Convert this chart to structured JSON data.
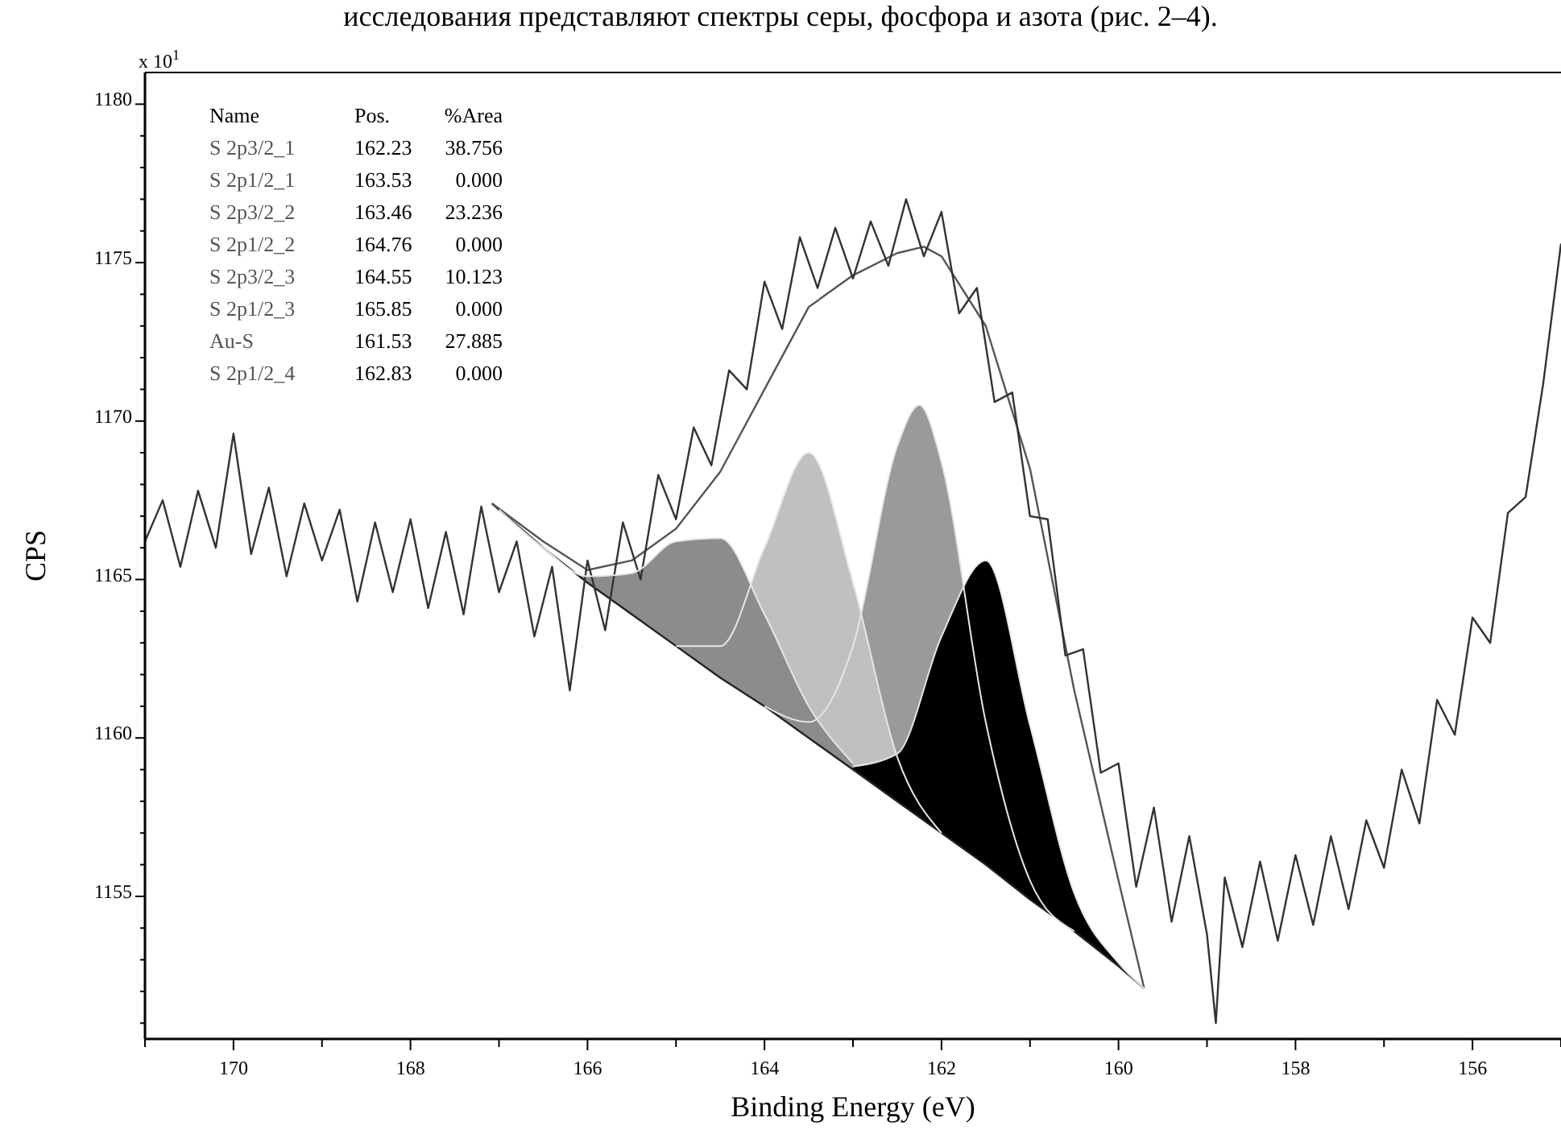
{
  "chart_data": {
    "type": "area",
    "xlabel": "Binding Energy (eV)",
    "ylabel": "CPS",
    "xlim": [
      171,
      155
    ],
    "xticks": [
      {
        "value": 171,
        "label": null
      },
      170,
      {
        "value": 169,
        "label": null
      },
      168,
      {
        "value": 167,
        "label": null
      },
      166,
      {
        "value": 165,
        "label": null
      },
      164,
      {
        "value": 163,
        "label": null
      },
      162,
      {
        "value": 161,
        "label": null
      },
      160,
      {
        "value": 159,
        "label": null
      },
      158,
      {
        "value": 157,
        "label": null
      },
      156,
      {
        "value": 155,
        "label": null
      }
    ],
    "ylim": [
      1150.5,
      1181
    ],
    "yticks": [
      {
        "value": 1151,
        "label": null
      },
      {
        "value": 1152,
        "label": null
      },
      {
        "value": 1153,
        "label": null
      },
      {
        "value": 1154,
        "label": null
      },
      1155,
      {
        "value": 1156,
        "label": null
      },
      {
        "value": 1157,
        "label": null
      },
      {
        "value": 1158,
        "label": null
      },
      {
        "value": 1159,
        "label": null
      },
      1160,
      {
        "value": 1161,
        "label": null
      },
      {
        "value": 1162,
        "label": null
      },
      {
        "value": 1163,
        "label": null
      },
      {
        "value": 1164,
        "label": null
      },
      1165,
      {
        "value": 1166,
        "label": null
      },
      {
        "value": 1167,
        "label": null
      },
      {
        "value": 1168,
        "label": null
      },
      {
        "value": 1169,
        "label": null
      },
      1170,
      {
        "value": 1171,
        "label": null
      },
      {
        "value": 1172,
        "label": null
      },
      {
        "value": 1173,
        "label": null
      },
      {
        "value": 1174,
        "label": null
      },
      1175,
      {
        "value": 1176,
        "label": null
      },
      {
        "value": 1177,
        "label": null
      },
      {
        "value": 1178,
        "label": null
      },
      {
        "value": 1179,
        "label": null
      },
      1180
    ],
    "grid": false,
    "series": [
      {
        "color": "#9a9a9a",
        "x": [
          164,
          163.5,
          163,
          162.5,
          162.25,
          162,
          161.5,
          161,
          160.5
        ],
        "values": [
          1161.0,
          1160.5,
          1162.9,
          1169.2,
          1170.5,
          1168.7,
          1160.5,
          1155.5,
          1153.9
        ]
      },
      {
        "color": "#c0c0c0",
        "x": [
          165,
          164.5,
          164,
          163.5,
          163,
          162.5,
          162
        ],
        "values": [
          1162.9,
          1162.9,
          1166.0,
          1169.0,
          1164.9,
          1159.4,
          1157.0
        ]
      },
      {
        "color": "#8c8c8c",
        "x": [
          167,
          166.5,
          166,
          165.5,
          165,
          164.5,
          164,
          163.5,
          163
        ],
        "values": [
          1167.2,
          1166.0,
          1165.1,
          1165.2,
          1166.2,
          1166.3,
          1163.9,
          1161.0,
          1159.2
        ]
      },
      {
        "color": "#000000",
        "x": [
          163,
          162.5,
          162,
          161.5,
          161,
          160.5,
          160,
          159.71
        ],
        "values": [
          1159.1,
          1159.5,
          1163.2,
          1165.6,
          1160.4,
          1155.1,
          1152.9,
          1152.1
        ]
      },
      {
        "type": "line",
        "color": "#222222",
        "x": [
          167.08,
          167,
          166.5,
          166,
          165.5,
          165,
          164.5,
          164,
          163.5,
          163,
          162.5,
          162,
          161.5,
          161,
          160.5,
          160,
          159.71
        ],
        "values": [
          1167.4,
          1167.2,
          1166.0,
          1164.9,
          1163.9,
          1162.9,
          1161.9,
          1161.0,
          1160.0,
          1159.0,
          1158.0,
          1157.0,
          1156.0,
          1154.9,
          1153.9,
          1152.8,
          1152.1
        ]
      },
      {
        "type": "line",
        "color": "#555555",
        "x": [
          167.08,
          166.5,
          166,
          165.5,
          165,
          164.5,
          164,
          163.5,
          163,
          162.5,
          162.2,
          162,
          161.5,
          161,
          160.5,
          160,
          159.71
        ],
        "values": [
          1167.4,
          1166.2,
          1165.3,
          1165.6,
          1166.6,
          1168.4,
          1171.0,
          1173.6,
          1174.6,
          1175.3,
          1175.5,
          1175.2,
          1173.0,
          1168.5,
          1161.5,
          1155.5,
          1152.1
        ]
      },
      {
        "type": "line",
        "color": "#333333",
        "x": [
          171.0,
          170.8,
          170.6,
          170.4,
          170.2,
          170.0,
          169.8,
          169.6,
          169.4,
          169.2,
          169.0,
          168.8,
          168.6,
          168.4,
          168.2,
          168.0,
          167.8,
          167.6,
          167.4,
          167.2,
          167.0,
          166.8,
          166.6,
          166.4,
          166.2,
          166.0,
          165.8,
          165.6,
          165.4,
          165.2,
          165.0,
          164.8,
          164.6,
          164.4,
          164.2,
          164.0,
          163.8,
          163.6,
          163.4,
          163.2,
          163.0,
          162.8,
          162.6,
          162.4,
          162.2,
          162.0,
          161.8,
          161.6,
          161.4,
          161.2,
          161.0,
          160.8,
          160.6,
          160.4,
          160.2,
          160.0,
          159.8,
          159.6,
          159.4,
          159.2,
          159.0,
          158.9,
          158.8,
          158.6,
          158.4,
          158.2,
          158.0,
          157.8,
          157.6,
          157.4,
          157.2,
          157.0,
          156.8,
          156.6,
          156.4,
          156.2,
          156.0,
          155.8,
          155.6,
          155.4,
          155.2,
          155.0
        ],
        "values": [
          1166.2,
          1167.5,
          1165.4,
          1167.8,
          1166.0,
          1169.6,
          1165.8,
          1167.9,
          1165.1,
          1167.4,
          1165.6,
          1167.2,
          1164.3,
          1166.8,
          1164.6,
          1166.9,
          1164.1,
          1166.5,
          1163.9,
          1167.3,
          1164.6,
          1166.2,
          1163.2,
          1165.4,
          1161.5,
          1165.6,
          1163.4,
          1166.8,
          1165.0,
          1168.3,
          1166.9,
          1169.8,
          1168.6,
          1171.6,
          1171.0,
          1174.4,
          1172.9,
          1175.8,
          1174.2,
          1176.1,
          1174.5,
          1176.3,
          1174.9,
          1177.0,
          1175.2,
          1176.6,
          1173.4,
          1174.2,
          1170.6,
          1170.9,
          1167.0,
          1166.9,
          1162.6,
          1162.8,
          1158.9,
          1159.2,
          1155.3,
          1157.8,
          1154.2,
          1156.9,
          1153.8,
          1151.0,
          1155.6,
          1153.4,
          1156.1,
          1153.6,
          1156.3,
          1154.1,
          1156.9,
          1154.6,
          1157.4,
          1155.9,
          1159.0,
          1157.3,
          1161.2,
          1160.1,
          1163.8,
          1163.0,
          1167.1,
          1167.6,
          1171.2,
          1175.6
        ]
      }
    ],
    "annotations": [
      "исследования представляют спектры серы, фосфора и азота (рис. 2–4).",
      "x 10$^{1}$",
      "Name\tPos.\t%Area",
      "S 2p3/2_1\t162.23\t38.756",
      "S 2p1/2_1\t163.53\t0.000",
      "S 2p3/2_2\t163.46\t23.236",
      "S 2p1/2_2\t164.76\t0.000",
      "S 2p3/2_3\t164.55\t10.123",
      "S 2p1/2_3\t165.85\t0.000",
      "Au-S\t161.53\t27.885",
      "S 2p1/2_4\t162.83\t0.000"
    ]
  }
}
